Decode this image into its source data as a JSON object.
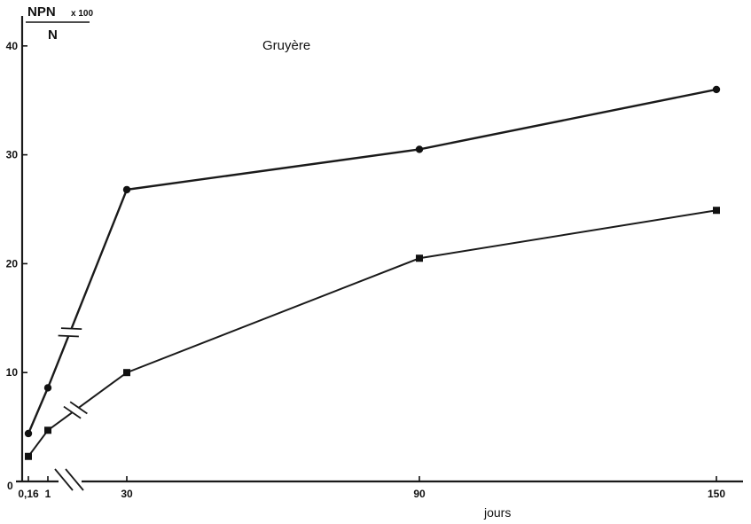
{
  "chart_data": {
    "type": "line",
    "title": "Gruyère",
    "xlabel": "jours",
    "ylabel": {
      "numerator": "NPN",
      "multiplier": "x 100",
      "denominator": "N"
    },
    "origin_label": "0",
    "x_ticks": [
      "0,16",
      "1",
      "30",
      "90",
      "150"
    ],
    "y_ticks": [
      "10",
      "20",
      "30",
      "40"
    ],
    "ylim": [
      0,
      40
    ],
    "axis_break": true,
    "series": [
      {
        "marker": "circle",
        "points": [
          {
            "x": "0,16",
            "y": 4.4
          },
          {
            "x": "1",
            "y": 8.6
          },
          {
            "x": "30",
            "y": 26.8
          },
          {
            "x": "90",
            "y": 30.5
          },
          {
            "x": "150",
            "y": 36
          }
        ]
      },
      {
        "marker": "square",
        "points": [
          {
            "x": "0,16",
            "y": 2.3
          },
          {
            "x": "1",
            "y": 4.7
          },
          {
            "x": "30",
            "y": 10
          },
          {
            "x": "90",
            "y": 20.5
          },
          {
            "x": "150",
            "y": 24.9
          }
        ]
      }
    ]
  }
}
